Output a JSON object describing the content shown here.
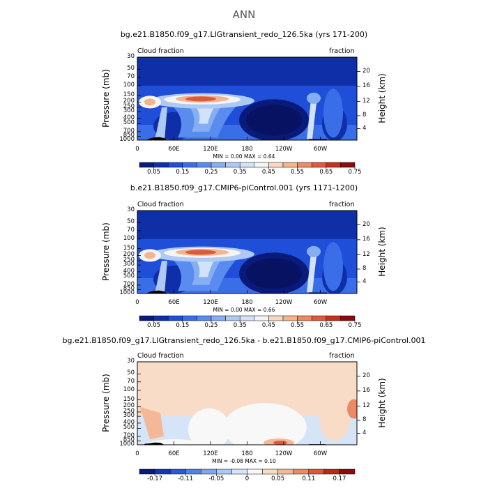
{
  "figure_title": "ANN",
  "colors": {
    "cloud_scale": [
      "#0a1a7a",
      "#0e2fa8",
      "#1f4fd8",
      "#3a6ee8",
      "#5a8cf0",
      "#86aef2",
      "#aecaf4",
      "#d2e2f8",
      "#f4f4f4",
      "#f8d8c4",
      "#f4b48e",
      "#ec8a62",
      "#de5a3c",
      "#c4321e",
      "#8a0c0c"
    ],
    "diff_scale": [
      "#0a1a7a",
      "#123ab0",
      "#2a5ad8",
      "#5080e8",
      "#80a6f0",
      "#aec8f4",
      "#d6e4f8",
      "#f8f8f8",
      "#f8dcc8",
      "#f4b896",
      "#ec8a66",
      "#dc5a3a",
      "#b82a1a",
      "#8a0c0c"
    ]
  },
  "chart_data": [
    {
      "type": "heatmap",
      "title": "bg.e21.B1850.f09_g17.LIGtransient_redo_126.5ka (yrs 171-200)",
      "left_label": "Cloud fraction",
      "right_label": "fraction",
      "ylabel": "Pressure (mb)",
      "y2label": "Height (km)",
      "x_ticks": [
        "0",
        "60E",
        "120E",
        "180",
        "120W",
        "60W"
      ],
      "y_ticks": [
        "1000",
        "850",
        "700",
        "500",
        "400",
        "300",
        "250",
        "200",
        "150",
        "100",
        "70",
        "50",
        "30"
      ],
      "y2_ticks": [
        "20",
        "16",
        "12",
        "8",
        "4"
      ],
      "min_label": "MIN =",
      "min": "0.00",
      "max_label": "MAX =",
      "max": "0.64",
      "colorbar_labels": [
        "0.05",
        "0.15",
        "0.25",
        "0.35",
        "0.45",
        "0.55",
        "0.65",
        "0.75"
      ]
    },
    {
      "type": "heatmap",
      "title": "b.e21.B1850.f09_g17.CMIP6-piControl.001 (yrs 1171-1200)",
      "left_label": "Cloud fraction",
      "right_label": "fraction",
      "ylabel": "Pressure (mb)",
      "y2label": "Height (km)",
      "x_ticks": [
        "0",
        "60E",
        "120E",
        "180",
        "120W",
        "60W"
      ],
      "y_ticks": [
        "1000",
        "850",
        "700",
        "500",
        "400",
        "300",
        "250",
        "200",
        "150",
        "100",
        "70",
        "50",
        "30"
      ],
      "y2_ticks": [
        "20",
        "16",
        "12",
        "8",
        "4"
      ],
      "min_label": "MIN =",
      "min": "0.00",
      "max_label": "MAX =",
      "max": "0.66",
      "colorbar_labels": [
        "0.05",
        "0.15",
        "0.25",
        "0.35",
        "0.45",
        "0.55",
        "0.65",
        "0.75"
      ]
    },
    {
      "type": "heatmap",
      "title": "bg.e21.B1850.f09_g17.LIGtransient_redo_126.5ka - b.e21.B1850.f09_g17.CMIP6-piControl.001",
      "left_label": "Cloud fraction",
      "right_label": "fraction",
      "ylabel": "Pressure (mb)",
      "y2label": "Height (km)",
      "x_ticks": [
        "0",
        "60E",
        "120E",
        "180",
        "120W",
        "60W"
      ],
      "y_ticks": [
        "1000",
        "850",
        "700",
        "500",
        "400",
        "300",
        "250",
        "200",
        "150",
        "100",
        "70",
        "50",
        "30"
      ],
      "y2_ticks": [
        "20",
        "16",
        "12",
        "8",
        "4"
      ],
      "min_label": "MIN =",
      "min": "-0.08",
      "max_label": "MAX =",
      "max": "0.10",
      "colorbar_labels": [
        "-0.17",
        "-0.11",
        "-0.05",
        "0",
        "0.05",
        "0.11",
        "0.17"
      ]
    }
  ]
}
